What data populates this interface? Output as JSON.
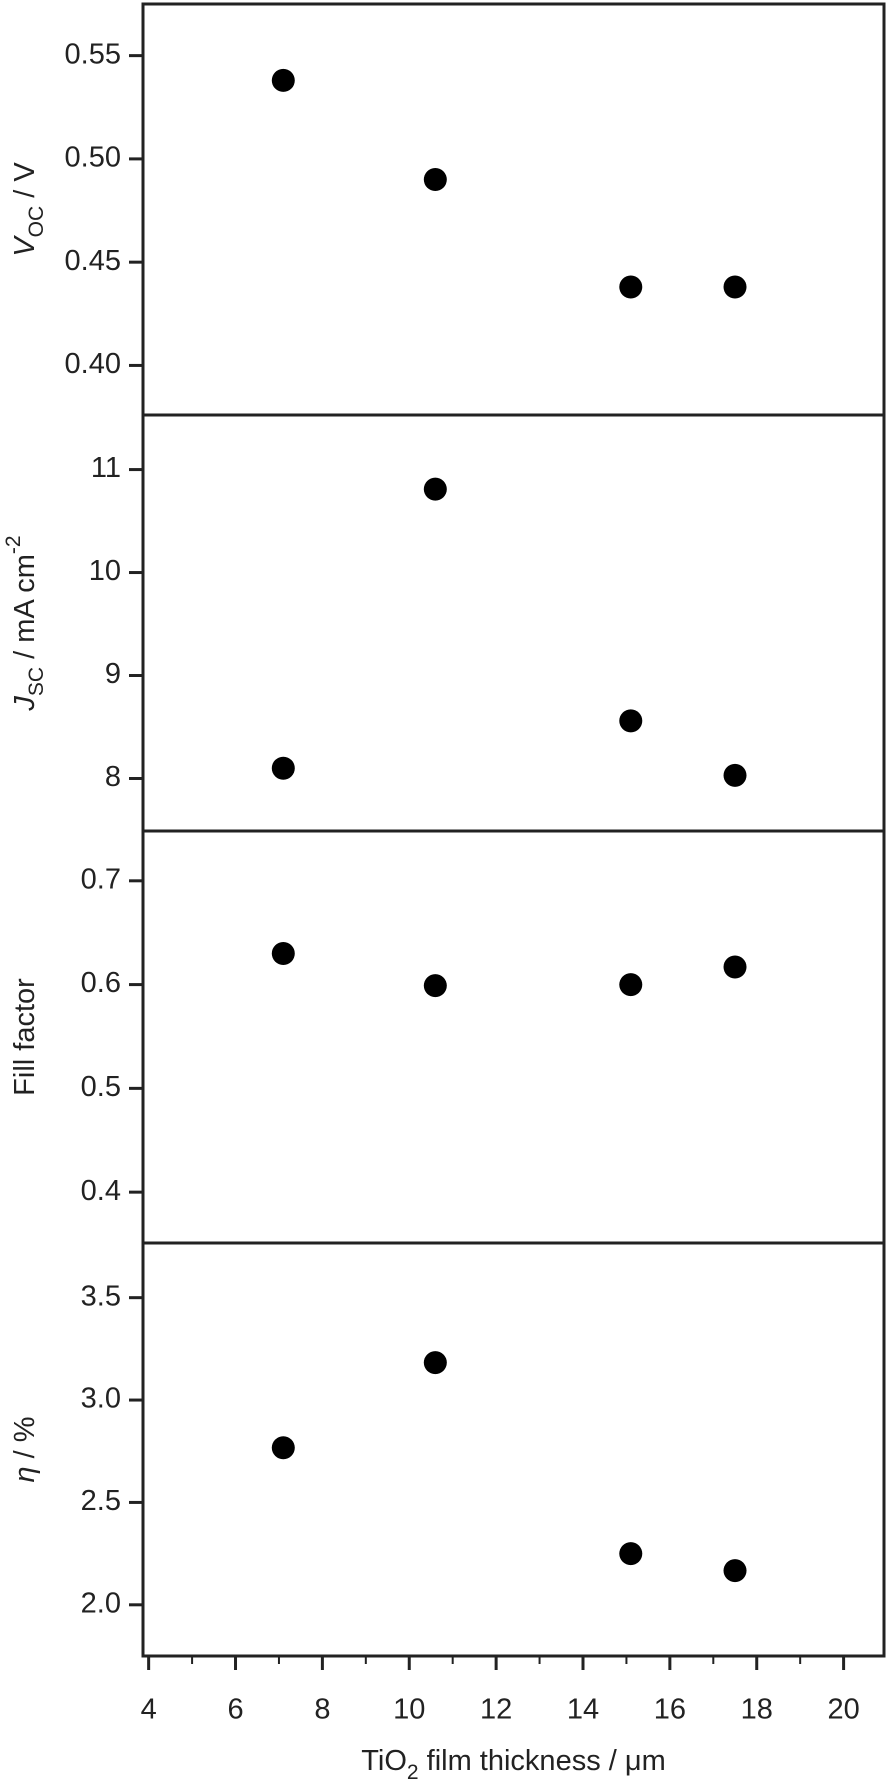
{
  "chart_data": [
    {
      "type": "scatter",
      "ylabel": [
        {
          "text": "V",
          "style": "italic"
        },
        {
          "text": "OC",
          "style": "sub"
        },
        {
          "text": " / V",
          "style": "normal"
        }
      ],
      "x": [
        7.1,
        10.6,
        15.1,
        17.5
      ],
      "series": [
        {
          "color": "#000000",
          "values": [
            0.538,
            0.49,
            0.438,
            0.438
          ]
        }
      ],
      "xlim": [
        3.87,
        20.93
      ],
      "ylim": [
        0.376,
        0.575
      ],
      "yticks": [
        {
          "value": 0.4,
          "label": "0.40"
        },
        {
          "value": 0.45,
          "label": "0.45"
        },
        {
          "value": 0.5,
          "label": "0.50"
        },
        {
          "value": 0.55,
          "label": "0.55"
        }
      ]
    },
    {
      "type": "scatter",
      "ylabel": [
        {
          "text": "J",
          "style": "italic"
        },
        {
          "text": "SC",
          "style": "sub"
        },
        {
          "text": " / mA cm",
          "style": "normal"
        },
        {
          "text": "-2",
          "style": "sup"
        }
      ],
      "x": [
        7.1,
        10.6,
        15.1,
        17.5
      ],
      "series": [
        {
          "color": "#000000",
          "values": [
            8.1,
            10.81,
            8.56,
            8.03
          ]
        }
      ],
      "xlim": [
        3.87,
        20.93
      ],
      "ylim": [
        7.49,
        11.53
      ],
      "yticks": [
        8,
        9,
        10,
        11
      ]
    },
    {
      "type": "scatter",
      "ylabel": [
        {
          "text": "Fill factor",
          "style": "normal"
        }
      ],
      "x": [
        7.1,
        10.6,
        15.1,
        17.5
      ],
      "series": [
        {
          "color": "#000000",
          "values": [
            0.63,
            0.599,
            0.6,
            0.617
          ]
        }
      ],
      "xlim": [
        3.87,
        20.93
      ],
      "ylim": [
        0.351,
        0.748
      ],
      "yticks": [
        0.4,
        0.5,
        0.6,
        0.7
      ]
    },
    {
      "type": "scatter",
      "ylabel": [
        {
          "text": "η",
          "style": "italic"
        },
        {
          "text": " / %",
          "style": "normal"
        }
      ],
      "xlabel": [
        {
          "text": "TiO",
          "style": "normal"
        },
        {
          "text": "2",
          "style": "sub"
        },
        {
          "text": " film thickness / μm",
          "style": "normal"
        }
      ],
      "x": [
        7.1,
        10.6,
        15.1,
        17.5
      ],
      "series": [
        {
          "color": "#000000",
          "values": [
            2.767,
            3.183,
            2.25,
            2.167
          ]
        }
      ],
      "xlim": [
        3.87,
        20.93
      ],
      "ylim": [
        1.75,
        3.767
      ],
      "yticks": [
        {
          "value": 2,
          "label": "2.0"
        },
        {
          "value": 2.5,
          "label": "2.5"
        },
        {
          "value": 3,
          "label": "3.0"
        },
        {
          "value": 3.5,
          "label": "3.5"
        }
      ],
      "xticks": [
        4,
        6,
        8,
        10,
        12,
        14,
        16,
        18,
        20
      ],
      "xminorticks": [
        5,
        7,
        9,
        11,
        13,
        15,
        17,
        19
      ]
    }
  ]
}
